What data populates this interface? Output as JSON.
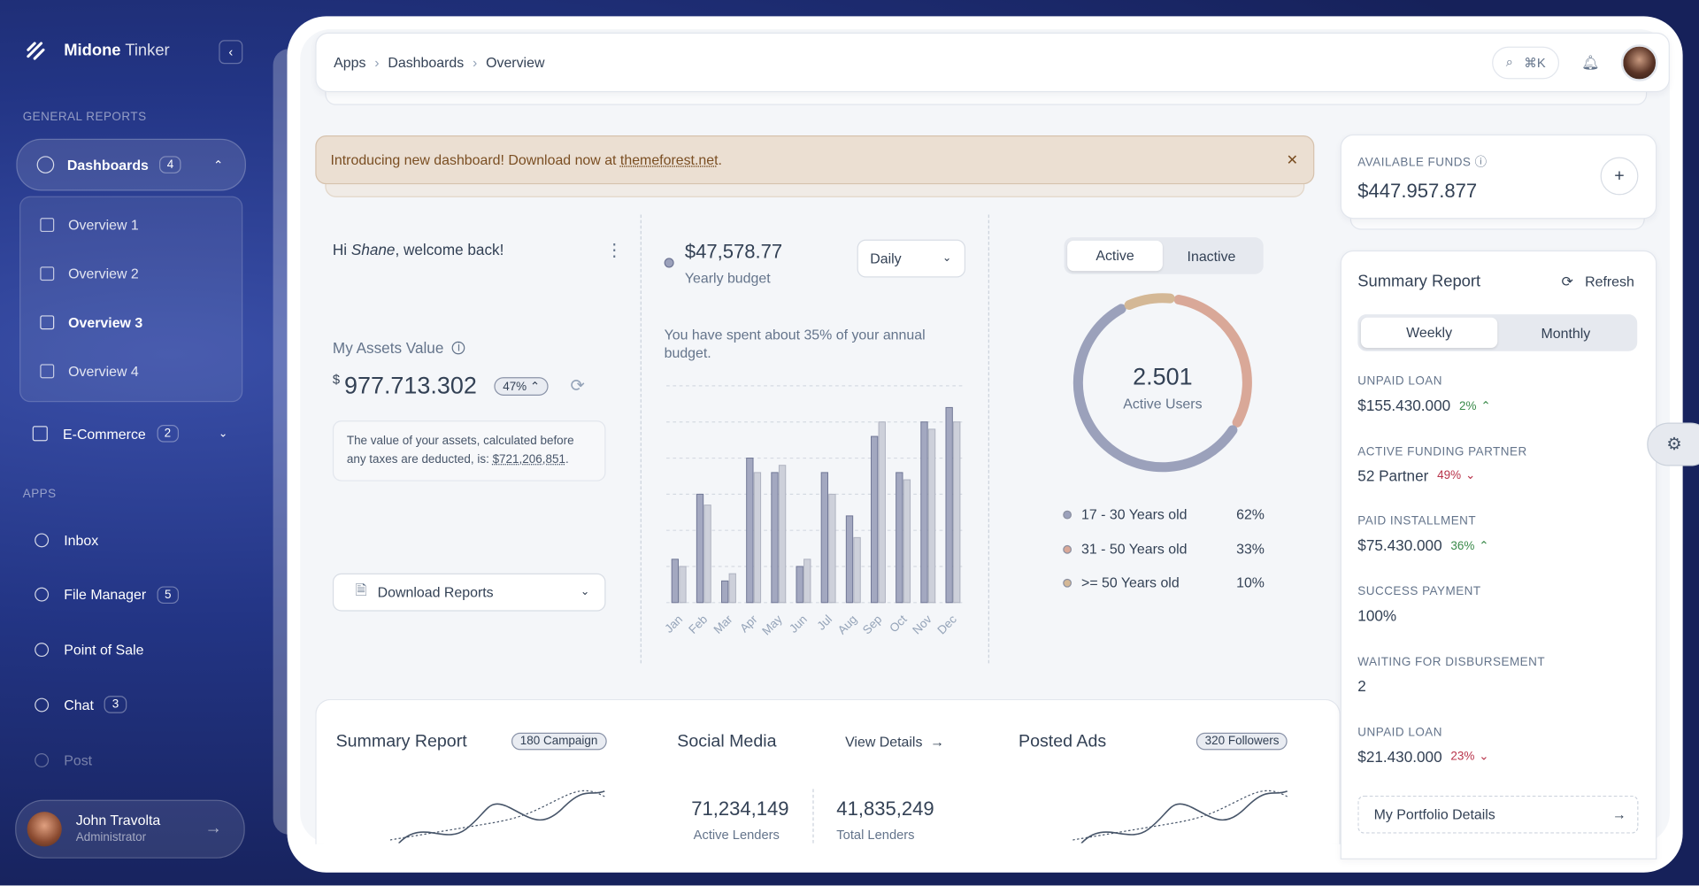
{
  "sidebar": {
    "brand_bold": "Midone",
    "brand_light": "Tinker",
    "general_heading": "GENERAL REPORTS",
    "dashboards": {
      "label": "Dashboards",
      "badge": "4"
    },
    "submenu": [
      "Overview 1",
      "Overview 2",
      "Overview 3",
      "Overview 4"
    ],
    "ecommerce": {
      "label": "E-Commerce",
      "badge": "2"
    },
    "apps_heading": "APPS",
    "apps": [
      {
        "label": "Inbox"
      },
      {
        "label": "File Manager",
        "badge": "5"
      },
      {
        "label": "Point of Sale"
      },
      {
        "label": "Chat",
        "badge": "3"
      },
      {
        "label": "Post"
      }
    ],
    "user": {
      "name": "John Travolta",
      "role": "Administrator"
    }
  },
  "header": {
    "breadcrumb": [
      "Apps",
      "Dashboards",
      "Overview"
    ],
    "search_shortcut": "⌘K"
  },
  "alert": {
    "text": "Introducing new dashboard! Download now at",
    "link": "themeforest.net",
    "end": "."
  },
  "welcome": {
    "greeting": "Hi",
    "name": "Shane",
    "rest": ", welcome back!",
    "assets_label": "My Assets Value",
    "currency": "$",
    "assets_value": "977.713.302",
    "change": "47%",
    "note": "The value of your assets, calculated before any taxes are deducted, is:",
    "note_amount": "$721,206,851",
    "note_end": ".",
    "download": "Download Reports"
  },
  "budget": {
    "amount": "$47,578.77",
    "label": "Yearly budget",
    "period": "Daily",
    "text": "You have spent about 35% of your annual budget.",
    "chart": {
      "type": "bar",
      "categories": [
        "Jan",
        "Feb",
        "Mar",
        "Apr",
        "May",
        "Jun",
        "Jul",
        "Aug",
        "Sep",
        "Oct",
        "Nov",
        "Dec"
      ],
      "series": [
        {
          "color": "#a3a8c0",
          "values": [
            1.2,
            3.0,
            0.6,
            4.0,
            3.6,
            1.0,
            3.6,
            2.4,
            4.6,
            3.6,
            5.0,
            5.4
          ]
        },
        {
          "color": "#cdd0da",
          "values": [
            1.0,
            2.7,
            0.8,
            3.6,
            3.8,
            1.2,
            3.0,
            1.8,
            5.0,
            3.4,
            4.8,
            5.0
          ]
        }
      ],
      "ylim": [
        0,
        6
      ],
      "gridlines": [
        0,
        1,
        2,
        3,
        4,
        5,
        6
      ]
    }
  },
  "users": {
    "tabs": [
      "Active",
      "Inactive"
    ],
    "total": "2.501",
    "total_label": "Active Users",
    "chart": {
      "type": "donut",
      "categories": [
        "17 - 30 Years old",
        "31 - 50 Years old",
        ">= 50 Years old"
      ],
      "values": [
        62,
        33,
        10
      ],
      "value_labels": [
        "62%",
        "33%",
        "10%"
      ],
      "colors": [
        "#9ba1bb",
        "#d9a898",
        "#d4b896"
      ]
    }
  },
  "bottom": {
    "summary": {
      "title": "Summary Report",
      "badge": "180 Campaign"
    },
    "social": {
      "title": "Social Media",
      "link": "View Details",
      "stats": [
        {
          "value": "71,234,149",
          "label": "Active Lenders"
        },
        {
          "value": "41,835,249",
          "label": "Total Lenders"
        }
      ]
    },
    "ads": {
      "title": "Posted Ads",
      "badge": "320 Followers"
    }
  },
  "funds": {
    "label": "AVAILABLE FUNDS",
    "value": "$447.957.877"
  },
  "summary": {
    "title": "Summary Report",
    "refresh": "Refresh",
    "tabs": [
      "Weekly",
      "Monthly"
    ],
    "items": [
      {
        "label": "UNPAID LOAN",
        "value": "$155.430.000",
        "change": "2%",
        "trend": "up"
      },
      {
        "label": "ACTIVE FUNDING PARTNER",
        "value": "52 Partner",
        "change": "49%",
        "trend": "down"
      },
      {
        "label": "PAID INSTALLMENT",
        "value": "$75.430.000",
        "change": "36%",
        "trend": "up"
      },
      {
        "label": "SUCCESS PAYMENT",
        "value": "100%"
      },
      {
        "label": "WAITING FOR DISBURSEMENT",
        "value": "2"
      },
      {
        "label": "UNPAID LOAN",
        "value": "$21.430.000",
        "change": "23%",
        "trend": "down"
      }
    ],
    "link": "My Portfolio Details"
  }
}
